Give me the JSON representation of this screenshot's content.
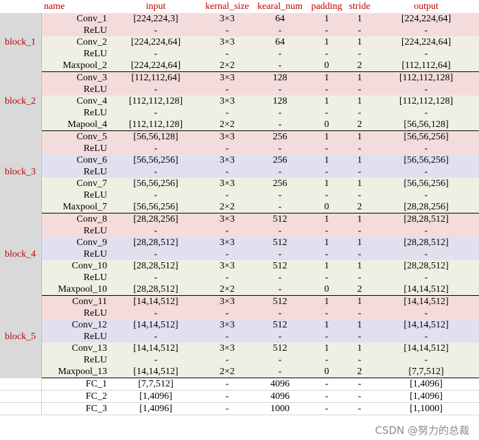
{
  "headers": [
    "name",
    "input",
    "kernal_size",
    "kearal_num",
    "padding",
    "stride",
    "output"
  ],
  "blocks": [
    {
      "label": "block_1",
      "rows": [
        {
          "name": "Conv_1",
          "input": "[224,224,3]",
          "kernel": "3×3",
          "num": "64",
          "padding": "1",
          "stride": "1",
          "output": "[224,224,64]"
        },
        {
          "name": "ReLU",
          "input": "-",
          "kernel": "-",
          "num": "-",
          "padding": "-",
          "stride": "-",
          "output": "-"
        },
        {
          "name": "Conv_2",
          "input": "[224,224,64]",
          "kernel": "3×3",
          "num": "64",
          "padding": "1",
          "stride": "1",
          "output": "[224,224,64]"
        },
        {
          "name": "ReLU",
          "input": "-",
          "kernel": "-",
          "num": "-",
          "padding": "-",
          "stride": "-",
          "output": "-"
        },
        {
          "name": "Maxpool_2",
          "input": "[224,224,64]",
          "kernel": "2×2",
          "num": "-",
          "padding": "0",
          "stride": "2",
          "output": "[112,112,64]"
        }
      ]
    },
    {
      "label": "block_2",
      "rows": [
        {
          "name": "Conv_3",
          "input": "[112,112,64]",
          "kernel": "3×3",
          "num": "128",
          "padding": "1",
          "stride": "1",
          "output": "[112,112,128]"
        },
        {
          "name": "ReLU",
          "input": "-",
          "kernel": "-",
          "num": "-",
          "padding": "-",
          "stride": "-",
          "output": "-"
        },
        {
          "name": "Conv_4",
          "input": "[112,112,128]",
          "kernel": "3×3",
          "num": "128",
          "padding": "1",
          "stride": "1",
          "output": "[112,112,128]"
        },
        {
          "name": "ReLU",
          "input": "-",
          "kernel": "-",
          "num": "-",
          "padding": "-",
          "stride": "-",
          "output": "-"
        },
        {
          "name": "Mapool_4",
          "input": "[112,112,128]",
          "kernel": "2×2",
          "num": "-",
          "padding": "0",
          "stride": "2",
          "output": "[56,56,128]"
        }
      ]
    },
    {
      "label": "block_3",
      "rows": [
        {
          "name": "Conv_5",
          "input": "[56,56,128]",
          "kernel": "3×3",
          "num": "256",
          "padding": "1",
          "stride": "1",
          "output": "[56,56,256]"
        },
        {
          "name": "ReLU",
          "input": "-",
          "kernel": "-",
          "num": "-",
          "padding": "-",
          "stride": "-",
          "output": "-"
        },
        {
          "name": "Conv_6",
          "input": "[56,56,256]",
          "kernel": "3×3",
          "num": "256",
          "padding": "1",
          "stride": "1",
          "output": "[56,56,256]"
        },
        {
          "name": "ReLU",
          "input": "-",
          "kernel": "-",
          "num": "-",
          "padding": "-",
          "stride": "-",
          "output": "-"
        },
        {
          "name": "Conv_7",
          "input": "[56,56,256]",
          "kernel": "3×3",
          "num": "256",
          "padding": "1",
          "stride": "1",
          "output": "[56,56,256]"
        },
        {
          "name": "ReLU",
          "input": "-",
          "kernel": "-",
          "num": "-",
          "padding": "-",
          "stride": "-",
          "output": "-"
        },
        {
          "name": "Maxpool_7",
          "input": "[56,56,256]",
          "kernel": "2×2",
          "num": "-",
          "padding": "0",
          "stride": "2",
          "output": "[28,28,256]"
        }
      ]
    },
    {
      "label": "block_4",
      "rows": [
        {
          "name": "Conv_8",
          "input": "[28,28,256]",
          "kernel": "3×3",
          "num": "512",
          "padding": "1",
          "stride": "1",
          "output": "[28,28,512]"
        },
        {
          "name": "ReLU",
          "input": "-",
          "kernel": "-",
          "num": "-",
          "padding": "-",
          "stride": "-",
          "output": "-"
        },
        {
          "name": "Conv_9",
          "input": "[28,28,512]",
          "kernel": "3×3",
          "num": "512",
          "padding": "1",
          "stride": "1",
          "output": "[28,28,512]"
        },
        {
          "name": "ReLU",
          "input": "-",
          "kernel": "-",
          "num": "-",
          "padding": "-",
          "stride": "-",
          "output": "-"
        },
        {
          "name": "Conv_10",
          "input": "[28,28,512]",
          "kernel": "3×3",
          "num": "512",
          "padding": "1",
          "stride": "1",
          "output": "[28,28,512]"
        },
        {
          "name": "ReLU",
          "input": "-",
          "kernel": "-",
          "num": "-",
          "padding": "-",
          "stride": "-",
          "output": "-"
        },
        {
          "name": "Maxpool_10",
          "input": "[28,28,512]",
          "kernel": "2×2",
          "num": "-",
          "padding": "0",
          "stride": "2",
          "output": "[14,14,512]"
        }
      ]
    },
    {
      "label": "block_5",
      "rows": [
        {
          "name": "Conv_11",
          "input": "[14,14,512]",
          "kernel": "3×3",
          "num": "512",
          "padding": "1",
          "stride": "1",
          "output": "[14,14,512]"
        },
        {
          "name": "ReLU",
          "input": "-",
          "kernel": "-",
          "num": "-",
          "padding": "-",
          "stride": "-",
          "output": "-"
        },
        {
          "name": "Conv_12",
          "input": "[14,14,512]",
          "kernel": "3×3",
          "num": "512",
          "padding": "1",
          "stride": "1",
          "output": "[14,14,512]"
        },
        {
          "name": "ReLU",
          "input": "-",
          "kernel": "-",
          "num": "-",
          "padding": "-",
          "stride": "-",
          "output": "-"
        },
        {
          "name": "Conv_13",
          "input": "[14,14,512]",
          "kernel": "3×3",
          "num": "512",
          "padding": "1",
          "stride": "1",
          "output": "[14,14,512]"
        },
        {
          "name": "ReLU",
          "input": "-",
          "kernel": "-",
          "num": "-",
          "padding": "-",
          "stride": "-",
          "output": "-"
        },
        {
          "name": "Maxpool_13",
          "input": "[14,14,512]",
          "kernel": "2×2",
          "num": "-",
          "padding": "0",
          "stride": "2",
          "output": "[7,7,512]"
        }
      ]
    }
  ],
  "fc": [
    {
      "name": "FC_1",
      "input": "[7,7,512]",
      "kernel": "-",
      "num": "4096",
      "padding": "-",
      "stride": "-",
      "output": "[1,4096]"
    },
    {
      "name": "FC_2",
      "input": "[1,4096]",
      "kernel": "-",
      "num": "4096",
      "padding": "-",
      "stride": "-",
      "output": "[1,4096]"
    },
    {
      "name": "FC_3",
      "input": "[1,4096]",
      "kernel": "-",
      "num": "1000",
      "padding": "-",
      "stride": "-",
      "output": "[1,1000]"
    }
  ],
  "colors": {
    "header_text": "#c00000",
    "block_cell": "#d9d9d9",
    "row_pink": "#f4dcdc",
    "row_lavender": "#e2dfef",
    "row_cream": "#efefe3"
  },
  "watermark": "CSDN @努力的总裁"
}
